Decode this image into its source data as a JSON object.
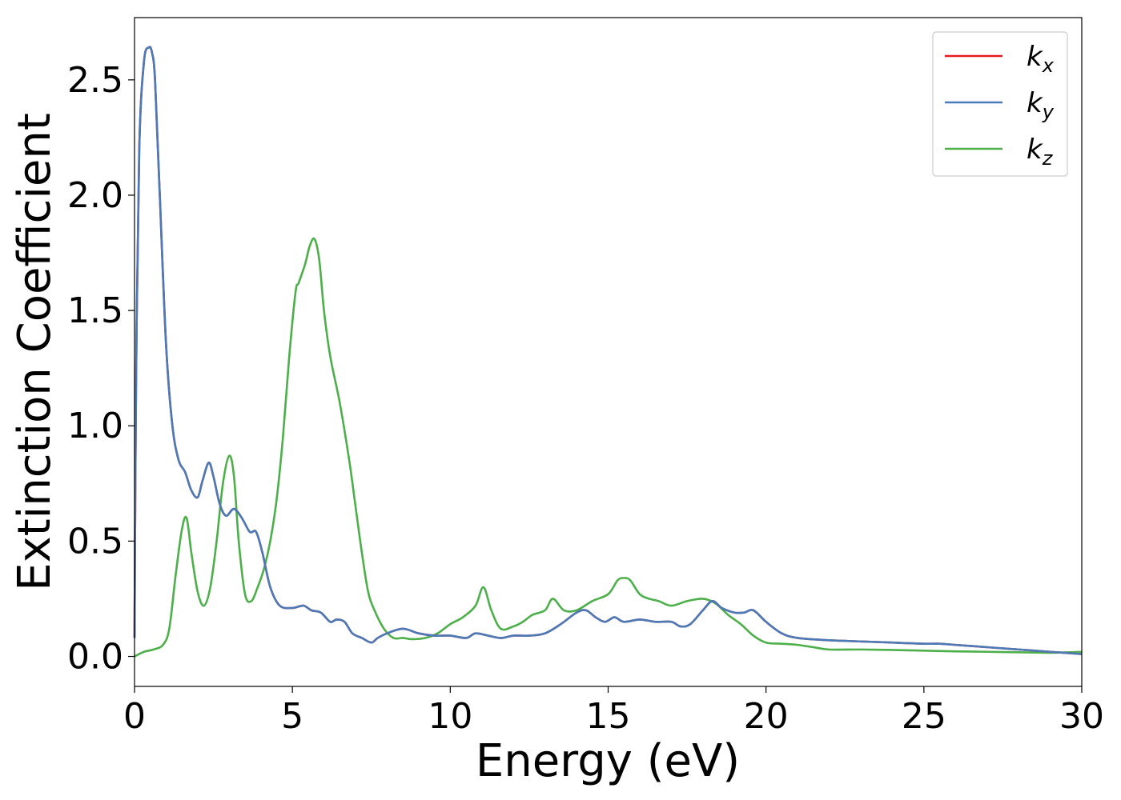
{
  "chart_data": {
    "type": "line",
    "xlabel": "Energy (eV)",
    "ylabel": "Extinction Coefficient",
    "xlim": [
      0,
      30
    ],
    "ylim": [
      -0.13,
      2.77
    ],
    "xticks": [
      0,
      5,
      10,
      15,
      20,
      25,
      30
    ],
    "xtick_labels": [
      "0",
      "5",
      "10",
      "15",
      "20",
      "25",
      "30"
    ],
    "yticks": [
      0.0,
      0.5,
      1.0,
      1.5,
      2.0,
      2.5
    ],
    "ytick_labels": [
      "0.0",
      "0.5",
      "1.0",
      "1.5",
      "2.0",
      "2.5"
    ],
    "grid": false,
    "legend_position": "top-right",
    "series": [
      {
        "name": "k_x",
        "label_base": "k",
        "label_sub": "x",
        "color": "#e41a1c",
        "x": [
          0,
          0.05,
          0.15,
          0.3,
          0.45,
          0.55,
          0.65,
          0.8,
          1.0,
          1.2,
          1.4,
          1.6,
          1.8,
          2.0,
          2.15,
          2.35,
          2.5,
          2.7,
          2.9,
          3.15,
          3.4,
          3.65,
          3.85,
          4.05,
          4.3,
          4.6,
          5.0,
          5.35,
          5.6,
          5.9,
          6.2,
          6.4,
          6.65,
          6.9,
          7.2,
          7.5,
          7.7,
          8.0,
          8.5,
          9.0,
          9.5,
          10.0,
          10.5,
          10.8,
          11.2,
          11.6,
          12.0,
          12.5,
          13.0,
          13.5,
          14.0,
          14.3,
          14.6,
          14.9,
          15.2,
          15.5,
          16.0,
          16.5,
          17.0,
          17.3,
          17.6,
          18.0,
          18.3,
          18.6,
          19.0,
          19.3,
          19.6,
          20.0,
          20.5,
          21.0,
          22.0,
          23.0,
          24.0,
          25.0,
          25.5,
          26.0,
          27.0,
          28.0,
          29.0,
          30.0
        ],
        "y": [
          0.08,
          1.2,
          2.2,
          2.58,
          2.64,
          2.62,
          2.5,
          2.0,
          1.35,
          1.0,
          0.85,
          0.8,
          0.72,
          0.69,
          0.76,
          0.84,
          0.78,
          0.66,
          0.61,
          0.64,
          0.6,
          0.54,
          0.54,
          0.45,
          0.3,
          0.22,
          0.21,
          0.22,
          0.2,
          0.19,
          0.15,
          0.16,
          0.15,
          0.1,
          0.08,
          0.06,
          0.08,
          0.1,
          0.12,
          0.1,
          0.09,
          0.09,
          0.08,
          0.1,
          0.09,
          0.08,
          0.09,
          0.09,
          0.1,
          0.14,
          0.19,
          0.2,
          0.17,
          0.15,
          0.17,
          0.15,
          0.16,
          0.15,
          0.15,
          0.13,
          0.14,
          0.2,
          0.24,
          0.21,
          0.19,
          0.19,
          0.2,
          0.15,
          0.1,
          0.08,
          0.07,
          0.065,
          0.06,
          0.055,
          0.055,
          0.05,
          0.04,
          0.03,
          0.02,
          0.01
        ]
      },
      {
        "name": "k_y",
        "label_base": "k",
        "label_sub": "y",
        "color": "#4a7ab8",
        "x": [
          0,
          0.05,
          0.15,
          0.3,
          0.45,
          0.55,
          0.65,
          0.8,
          1.0,
          1.2,
          1.4,
          1.6,
          1.8,
          2.0,
          2.15,
          2.35,
          2.5,
          2.7,
          2.9,
          3.15,
          3.4,
          3.65,
          3.85,
          4.05,
          4.3,
          4.6,
          5.0,
          5.35,
          5.6,
          5.9,
          6.2,
          6.4,
          6.65,
          6.9,
          7.2,
          7.5,
          7.7,
          8.0,
          8.5,
          9.0,
          9.5,
          10.0,
          10.5,
          10.8,
          11.2,
          11.6,
          12.0,
          12.5,
          13.0,
          13.5,
          14.0,
          14.3,
          14.6,
          14.9,
          15.2,
          15.5,
          16.0,
          16.5,
          17.0,
          17.3,
          17.6,
          18.0,
          18.3,
          18.6,
          19.0,
          19.3,
          19.6,
          20.0,
          20.5,
          21.0,
          22.0,
          23.0,
          24.0,
          25.0,
          25.5,
          26.0,
          27.0,
          28.0,
          29.0,
          30.0
        ],
        "y": [
          0.08,
          1.2,
          2.2,
          2.58,
          2.64,
          2.62,
          2.5,
          2.0,
          1.35,
          1.0,
          0.85,
          0.8,
          0.72,
          0.69,
          0.76,
          0.84,
          0.78,
          0.66,
          0.61,
          0.64,
          0.6,
          0.54,
          0.54,
          0.45,
          0.3,
          0.22,
          0.21,
          0.22,
          0.2,
          0.19,
          0.15,
          0.16,
          0.15,
          0.1,
          0.08,
          0.06,
          0.08,
          0.1,
          0.12,
          0.1,
          0.09,
          0.09,
          0.08,
          0.1,
          0.09,
          0.08,
          0.09,
          0.09,
          0.1,
          0.14,
          0.19,
          0.2,
          0.17,
          0.15,
          0.17,
          0.15,
          0.16,
          0.15,
          0.15,
          0.13,
          0.14,
          0.2,
          0.24,
          0.21,
          0.19,
          0.19,
          0.2,
          0.15,
          0.1,
          0.08,
          0.07,
          0.065,
          0.06,
          0.055,
          0.055,
          0.05,
          0.04,
          0.03,
          0.02,
          0.01
        ]
      },
      {
        "name": "k_z",
        "label_base": "k",
        "label_sub": "z",
        "color": "#4daf4a",
        "x": [
          0,
          0.3,
          0.6,
          0.9,
          1.1,
          1.3,
          1.5,
          1.65,
          1.8,
          2.0,
          2.2,
          2.4,
          2.6,
          2.8,
          3.0,
          3.15,
          3.3,
          3.5,
          3.7,
          3.9,
          4.1,
          4.3,
          4.5,
          4.7,
          4.9,
          5.1,
          5.2,
          5.4,
          5.55,
          5.7,
          5.85,
          6.0,
          6.2,
          6.5,
          6.8,
          7.0,
          7.2,
          7.4,
          7.6,
          7.9,
          8.2,
          8.5,
          8.8,
          9.2,
          9.6,
          10.0,
          10.4,
          10.8,
          11.05,
          11.3,
          11.6,
          12.0,
          12.3,
          12.6,
          13.0,
          13.25,
          13.6,
          14.0,
          14.5,
          15.0,
          15.3,
          15.5,
          15.7,
          16.0,
          16.3,
          16.6,
          17.0,
          17.5,
          18.0,
          18.4,
          18.8,
          19.2,
          19.6,
          20.0,
          20.5,
          21.0,
          21.5,
          22.0,
          23.0,
          24.0,
          25.0,
          26.0,
          27.0,
          28.0,
          29.0,
          30.0
        ],
        "y": [
          0.0,
          0.02,
          0.03,
          0.05,
          0.12,
          0.35,
          0.55,
          0.6,
          0.45,
          0.28,
          0.22,
          0.3,
          0.5,
          0.75,
          0.87,
          0.78,
          0.5,
          0.27,
          0.24,
          0.3,
          0.38,
          0.5,
          0.68,
          0.95,
          1.3,
          1.58,
          1.62,
          1.7,
          1.78,
          1.81,
          1.72,
          1.5,
          1.3,
          1.1,
          0.85,
          0.65,
          0.45,
          0.28,
          0.2,
          0.12,
          0.08,
          0.08,
          0.075,
          0.08,
          0.1,
          0.14,
          0.17,
          0.22,
          0.3,
          0.2,
          0.12,
          0.13,
          0.15,
          0.18,
          0.2,
          0.25,
          0.2,
          0.2,
          0.24,
          0.27,
          0.33,
          0.34,
          0.33,
          0.27,
          0.25,
          0.24,
          0.22,
          0.24,
          0.25,
          0.23,
          0.18,
          0.14,
          0.09,
          0.06,
          0.055,
          0.05,
          0.04,
          0.03,
          0.03,
          0.028,
          0.025,
          0.022,
          0.02,
          0.018,
          0.016,
          0.02
        ]
      }
    ]
  }
}
